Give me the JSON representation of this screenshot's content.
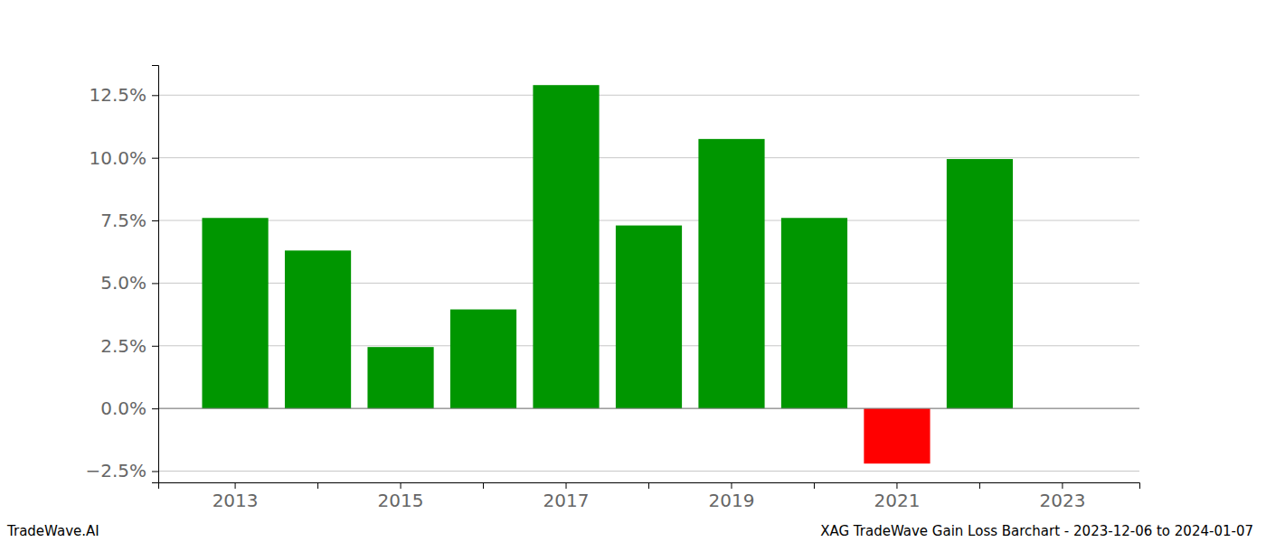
{
  "chart_data": {
    "type": "bar",
    "title": "XAG TradeWave Gain Loss Barchart - 2023-12-06 to 2024-01-07",
    "annotations": [
      "TradeWave.AI"
    ],
    "categories": [
      "2013",
      null,
      "2015",
      null,
      "2017",
      null,
      "2019",
      null,
      "2021",
      null,
      "2023"
    ],
    "values": [
      7.6,
      6.3,
      2.45,
      3.95,
      12.9,
      7.3,
      10.75,
      7.6,
      -2.2,
      9.95,
      null
    ],
    "colors": [
      "#009600",
      "#009600",
      "#009600",
      "#009600",
      "#009600",
      "#009600",
      "#009600",
      "#009600",
      "#ff0000",
      "#009600",
      null
    ],
    "ylim": [
      -2.95,
      13.7
    ],
    "yticks": [
      {
        "value": -2.5,
        "label": "−2.5%"
      },
      {
        "value": 0,
        "label": "0.0%"
      },
      {
        "value": 2.5,
        "label": "2.5%"
      },
      {
        "value": 5,
        "label": "5.0%"
      },
      {
        "value": 7.5,
        "label": "7.5%"
      },
      {
        "value": 10,
        "label": "10.0%"
      },
      {
        "value": 12.5,
        "label": "12.5%"
      }
    ],
    "grid": true
  }
}
